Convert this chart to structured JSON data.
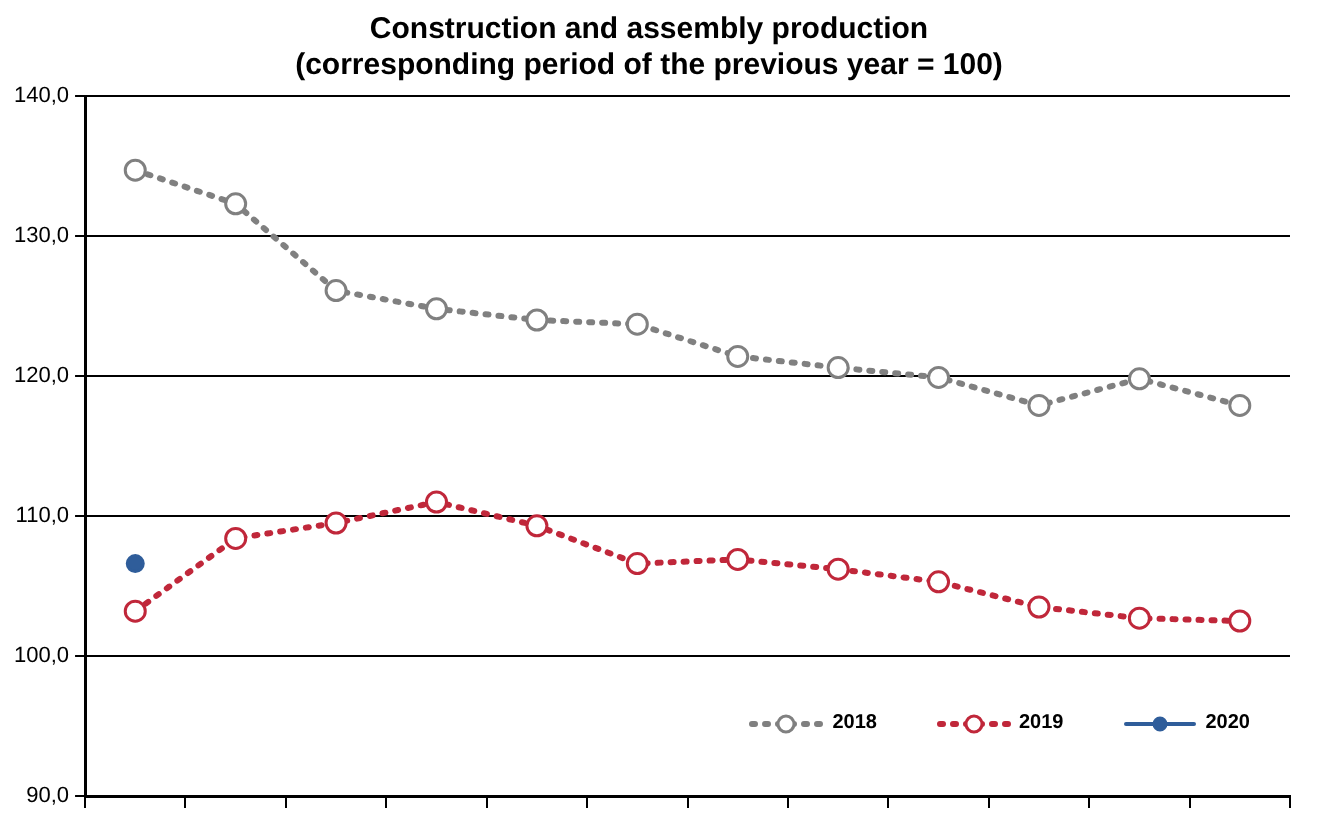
{
  "chart_data": {
    "type": "line",
    "title": "Construction and assembly production",
    "subtitle": "(corresponding period of the previous year = 100)",
    "categories": [
      null,
      null,
      null,
      null,
      null,
      null,
      null,
      null,
      null,
      null,
      null,
      null
    ],
    "series": [
      {
        "name": "2018",
        "color": "#808080",
        "line_style": "dotted",
        "marker": "circle",
        "values": [
          134.7,
          132.3,
          126.1,
          124.8,
          124.0,
          123.7,
          121.4,
          120.6,
          119.9,
          117.9,
          119.8,
          117.9
        ]
      },
      {
        "name": "2019",
        "color": "#c0273a",
        "line_style": "dotted",
        "marker": "circle",
        "values": [
          103.2,
          108.4,
          109.5,
          111.0,
          109.3,
          106.6,
          106.9,
          106.2,
          105.3,
          103.5,
          102.7,
          102.5
        ]
      },
      {
        "name": "2020",
        "color": "#2f5d9a",
        "line_style": "solid",
        "marker": "circle",
        "values": [
          106.6,
          null,
          null,
          null,
          null,
          null,
          null,
          null,
          null,
          null,
          null,
          null
        ]
      }
    ],
    "ylim": [
      90,
      140
    ],
    "yticks": [
      {
        "value": 90,
        "label": "90,0"
      },
      {
        "value": 100,
        "label": "100,0"
      },
      {
        "value": 110,
        "label": "110,0"
      },
      {
        "value": 120,
        "label": "120,0"
      },
      {
        "value": 130,
        "label": "130,0"
      },
      {
        "value": 140,
        "label": "140,0"
      }
    ],
    "grid": "y",
    "legend": "bottom right",
    "tick_labels": "y"
  }
}
